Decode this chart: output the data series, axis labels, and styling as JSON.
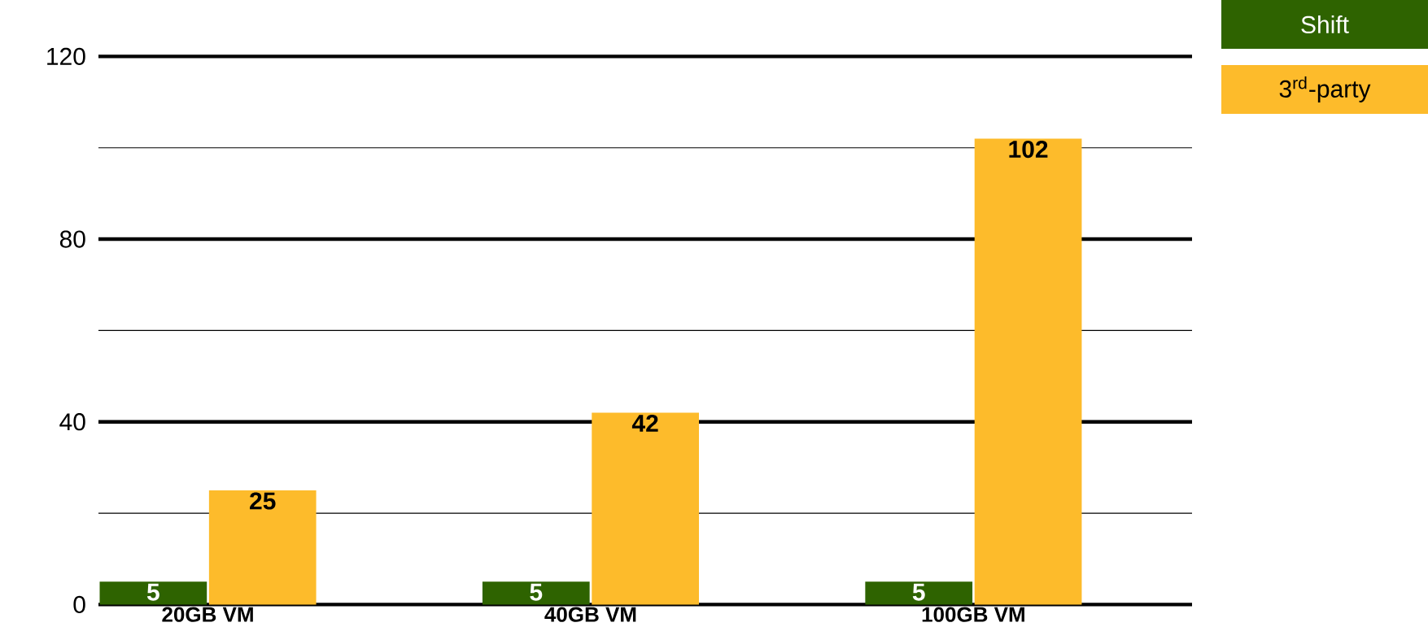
{
  "chart_data": {
    "type": "bar",
    "categories": [
      "20GB VM",
      "40GB VM",
      "100GB VM"
    ],
    "series": [
      {
        "name": "Shift",
        "color": "#2e6300",
        "values": [
          5,
          5,
          5
        ]
      },
      {
        "name": "3$^{rd}$-party",
        "color": "#fdbb2b",
        "values": [
          25,
          42,
          102
        ]
      }
    ],
    "ylim": [
      0,
      120
    ],
    "yticks": [
      0,
      {
        "value": 20,
        "label": null
      },
      40,
      {
        "value": 60,
        "label": null
      },
      80,
      {
        "value": 100,
        "label": null
      },
      120
    ],
    "grid": "y",
    "legend": "top right",
    "data_labels": true
  }
}
